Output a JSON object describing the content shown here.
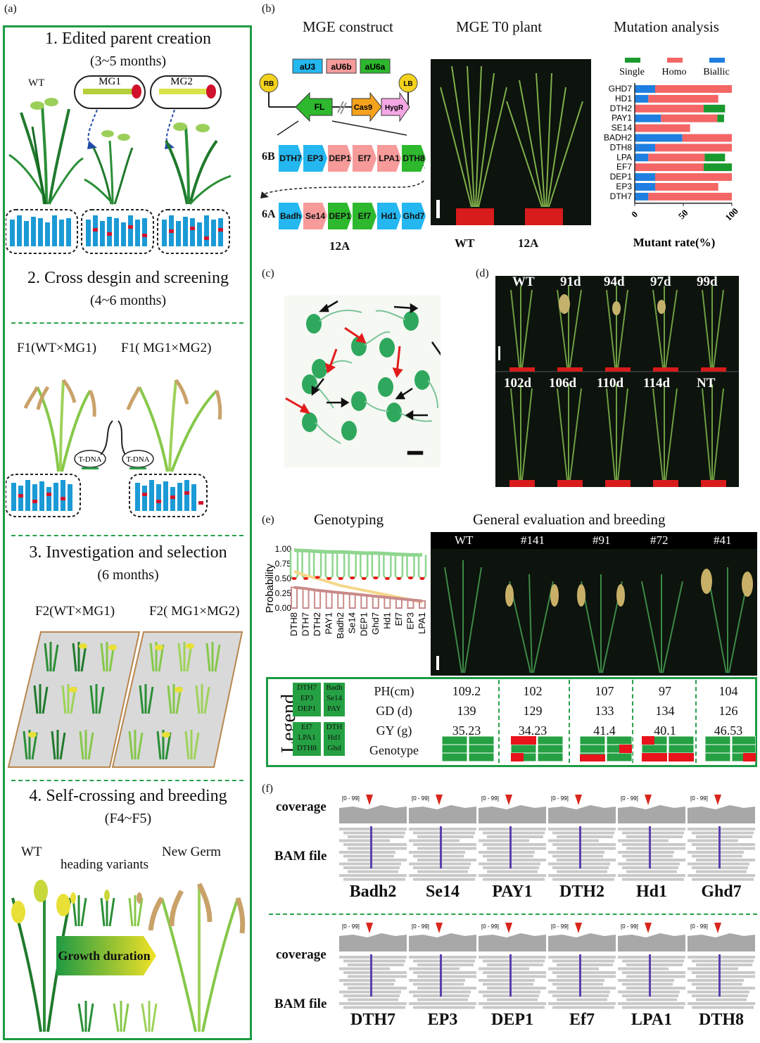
{
  "panel_labels": {
    "a": "(a)",
    "b": "(b)",
    "c": "(c)",
    "d": "(d)",
    "e": "(e)",
    "f": "(f)"
  },
  "panel_a": {
    "step1_title": "1. Edited parent creation",
    "step1_duration": "(3~5 months)",
    "wt_label": "WT",
    "mg1_label": "MG1",
    "mg2_label": "MG2",
    "step2_title": "2. Cross desgin and screening",
    "step2_duration": "(4~6 months)",
    "f1_wt_mg1": "F1(WT×MG1)",
    "f1_mg1_mg2": "F1( MG1×MG2)",
    "tdna_label": "T-DNA",
    "step3_title": "3. Investigation and selection",
    "step3_duration": "(6 months)",
    "f2_wt_mg1": "F2(WT×MG1)",
    "f2_mg1_mg2": "F2( MG1×MG2)",
    "step4_title": "4. Self-crossing and breeding",
    "step4_duration": "(F4~F5)",
    "wt2_label": "WT",
    "heading_variants": "heading variants",
    "new_germ": "New Germ",
    "growth_duration": "Growth duration"
  },
  "panel_b": {
    "construct_title": "MGE construct",
    "plant_title": "MGE T0 plant",
    "mutation_title": "Mutation analysis",
    "promoters": [
      "aU3",
      "aU6b",
      "aU6a"
    ],
    "rb": "RB",
    "lb": "LB",
    "fl": "FL",
    "cas9": "Cas9",
    "hygr": "HygR",
    "row6b_label": "6B",
    "row6b_genes": [
      "DTH7",
      "EP3",
      "DEP1",
      "Ef7",
      "LPA1",
      "DTH8"
    ],
    "row6a_label": "6A",
    "row6a_genes": [
      "Badh",
      "Se14",
      "DEP1",
      "Ef7",
      "Hd1",
      "Ghd7"
    ],
    "construct_name": "12A",
    "photo_wt": "WT",
    "photo_12a": "12A",
    "colors": {
      "single": "#1a9a2e",
      "homo": "#f46565",
      "biallic": "#1f7fe0"
    }
  },
  "chart_data": [
    {
      "type": "bar",
      "orientation": "horizontal",
      "stacked": true,
      "title": "Mutation analysis",
      "xlabel": "Mutant rate(%)",
      "ylabel": "",
      "xlim": [
        0,
        100
      ],
      "xticks": [
        "0",
        "50",
        "100"
      ],
      "legend_position": "top",
      "categories": [
        "GHD7",
        "HD1",
        "DTH2",
        "PAY1",
        "SE14",
        "BADH2",
        "DTH8",
        "LPA",
        "EF7",
        "DEP1",
        "EP3",
        "DTH7"
      ],
      "series": [
        {
          "name": "Biallic",
          "color": "#1f7fe0",
          "values": [
            21,
            14,
            0,
            27,
            0,
            49,
            21,
            14,
            0,
            21,
            21,
            14
          ]
        },
        {
          "name": "Homo",
          "color": "#f46565",
          "values": [
            79,
            72,
            71,
            58,
            57,
            51,
            79,
            58,
            71,
            79,
            65,
            86
          ]
        },
        {
          "name": "Single",
          "color": "#1a9a2e",
          "values": [
            0,
            0,
            22,
            7,
            0,
            0,
            0,
            21,
            29,
            0,
            0,
            0
          ]
        }
      ]
    },
    {
      "type": "line",
      "title": "Genotyping",
      "ylabel": "Probability",
      "ylim": [
        0,
        1
      ],
      "yticks": [
        "1.00",
        "0.75",
        "0.50",
        "0.25",
        "0.00"
      ],
      "categories": [
        "DTH8",
        "DTH7",
        "DTH2",
        "PAY1",
        "Badh2",
        "Se14",
        "DEP1",
        "Ghd7",
        "Hd1",
        "Ef7",
        "EP3",
        "LPA1"
      ],
      "series": [
        {
          "color": "#8fd68f",
          "values": [
            0.98,
            0.97,
            0.96,
            0.95,
            0.95,
            0.94,
            0.93,
            0.93,
            0.92,
            0.91,
            0.9,
            0.9
          ]
        },
        {
          "color": "#f5d78a",
          "values": [
            0.62,
            0.55,
            0.5,
            0.44,
            0.38,
            0.34,
            0.3,
            0.26,
            0.22,
            0.18,
            0.14,
            0.1
          ]
        },
        {
          "color": "#e11",
          "values": [
            0.5,
            0.5,
            0.52,
            0.5,
            0.5,
            0.51,
            0.5,
            0.51,
            0.5,
            0.5,
            0.51,
            0.5
          ]
        },
        {
          "color": "#c98a8a",
          "values": [
            0.35,
            0.33,
            0.3,
            0.28,
            0.26,
            0.24,
            0.22,
            0.2,
            0.18,
            0.16,
            0.14,
            0.12
          ]
        }
      ]
    }
  ],
  "panel_d": {
    "row1": [
      "WT",
      "91d",
      "94d",
      "97d",
      "99d"
    ],
    "row2": [
      "102d",
      "106d",
      "110d",
      "114d",
      "NT"
    ]
  },
  "panel_e": {
    "genotyping_title": "Genotyping",
    "evaluation_title": "General evaluation and breeding",
    "photo_labels": [
      "WT",
      "#141",
      "#91",
      "#72",
      "#41"
    ],
    "legend_word": "Legend",
    "legend_genes": [
      [
        "DTH7",
        "EP3",
        "DEP1"
      ],
      [
        "Badh",
        "Se14",
        "PAY"
      ],
      [
        "Ef7",
        "LPA1",
        "DTH8"
      ],
      [
        "DTH",
        "Hd1",
        "Ghd"
      ]
    ],
    "traits": [
      "PH(cm)",
      "GD (d)",
      "GY (g)",
      "Genotype"
    ],
    "values": [
      [
        "109.2",
        "139",
        "35.23"
      ],
      [
        "102",
        "129",
        "34.23"
      ],
      [
        "107",
        "133",
        "41.4"
      ],
      [
        "97",
        "134",
        "40.1"
      ],
      [
        "104",
        "126",
        "46.53"
      ]
    ]
  },
  "panel_f": {
    "coverage": "coverage",
    "bam_file": "BAM file",
    "range": "[0 - 99]",
    "row1_genes": [
      "Badh2",
      "Se14",
      "PAY1",
      "DTH2",
      "Hd1",
      "Ghd7"
    ],
    "row2_genes": [
      "DTH7",
      "EP3",
      "DEP1",
      "Ef7",
      "LPA1",
      "DTH8"
    ]
  }
}
